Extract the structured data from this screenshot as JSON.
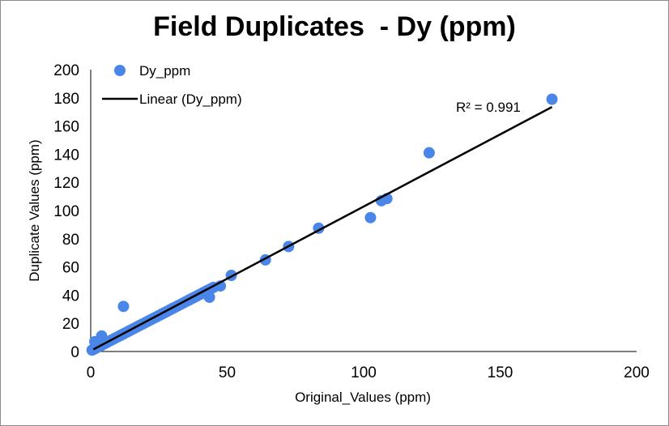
{
  "chart_data": {
    "type": "scatter",
    "title": "Field Duplicates  - Dy (ppm)",
    "xlabel": "Original_Values (ppm)",
    "ylabel": "Duplicate Values (ppm)",
    "xlim": [
      0,
      200
    ],
    "ylim": [
      0,
      200
    ],
    "xticks": [
      "0",
      "50",
      "100",
      "150",
      "200"
    ],
    "yticks": [
      "0",
      "20",
      "40",
      "60",
      "80",
      "100",
      "120",
      "140",
      "160",
      "180",
      "200"
    ],
    "grid": false,
    "legend_placement": "top-left",
    "colors": {
      "points": "#4a86e8",
      "trendline": "#000000"
    },
    "series": [
      {
        "name": "Dy_ppm",
        "x": [
          0.5,
          1,
          1.5,
          2,
          2.5,
          3,
          3.5,
          4,
          4.5,
          5,
          5.5,
          6,
          7,
          8,
          9,
          10,
          11,
          12,
          13,
          14,
          15,
          16,
          17,
          18,
          19,
          20,
          21,
          22,
          23,
          24,
          25,
          26,
          27,
          28,
          29,
          30,
          31,
          32,
          33,
          34,
          35,
          36,
          37,
          38,
          39,
          40,
          41,
          42,
          43,
          44,
          45,
          1.5,
          4,
          12,
          43.5,
          47.5,
          51.5,
          64,
          72.5,
          83.5,
          102.5,
          106.5,
          108.5,
          124,
          169
        ],
        "y": [
          1,
          1.5,
          2,
          2.5,
          3,
          3.5,
          4,
          4.5,
          5,
          5.5,
          6,
          6.5,
          7.5,
          8.5,
          9.5,
          10.5,
          11.5,
          12.5,
          13.5,
          14.5,
          15.5,
          16.5,
          17.5,
          18.5,
          19.5,
          20.5,
          21.5,
          22.5,
          23.5,
          24.5,
          25.5,
          26.5,
          27.5,
          28.5,
          29.5,
          30.5,
          31.5,
          32.5,
          33.5,
          34.5,
          35.5,
          36.5,
          37.5,
          38.5,
          39.5,
          40.5,
          41.5,
          42.5,
          43.5,
          44.5,
          45.5,
          7,
          11,
          32,
          38.5,
          46.5,
          54,
          65,
          74.5,
          87.5,
          95,
          107,
          108.5,
          141,
          179
        ]
      }
    ],
    "trendline": {
      "name": "Linear (Dy_ppm)",
      "x": [
        1,
        169
      ],
      "y": [
        1.5,
        173.5
      ]
    },
    "annotation": "R² = 0.991"
  }
}
